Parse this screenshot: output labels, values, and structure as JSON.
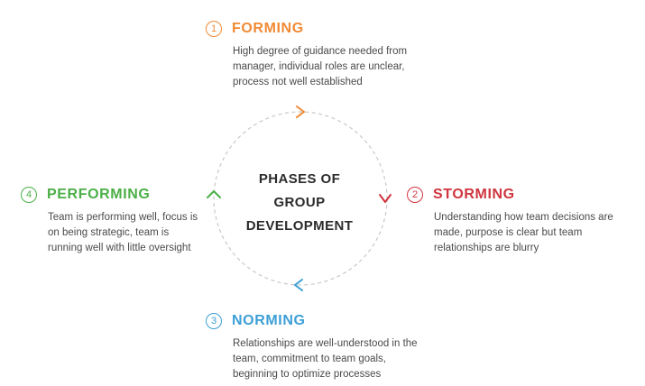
{
  "center": {
    "line1": "PHASES OF",
    "line2": "GROUP",
    "line3": "DEVELOPMENT"
  },
  "phases": [
    {
      "number": "1",
      "title": "FORMING",
      "color": "#f08a35",
      "description": "High degree of guidance needed from manager, individual roles are unclear, process not well established"
    },
    {
      "number": "2",
      "title": "STORMING",
      "color": "#d0353f",
      "description": "Understanding how team decisions are made, purpose is clear but team relationships are blurry"
    },
    {
      "number": "3",
      "title": "NORMING",
      "color": "#3c9fd6",
      "description": "Relationships are well-understood in the team, commitment to team goals, beginning to optimize processes"
    },
    {
      "number": "4",
      "title": "PERFORMING",
      "color": "#4caf47",
      "description": "Team is performing well, focus is on being strategic, team is running well with little oversight"
    }
  ],
  "cycle_color": "#c8c8c8"
}
